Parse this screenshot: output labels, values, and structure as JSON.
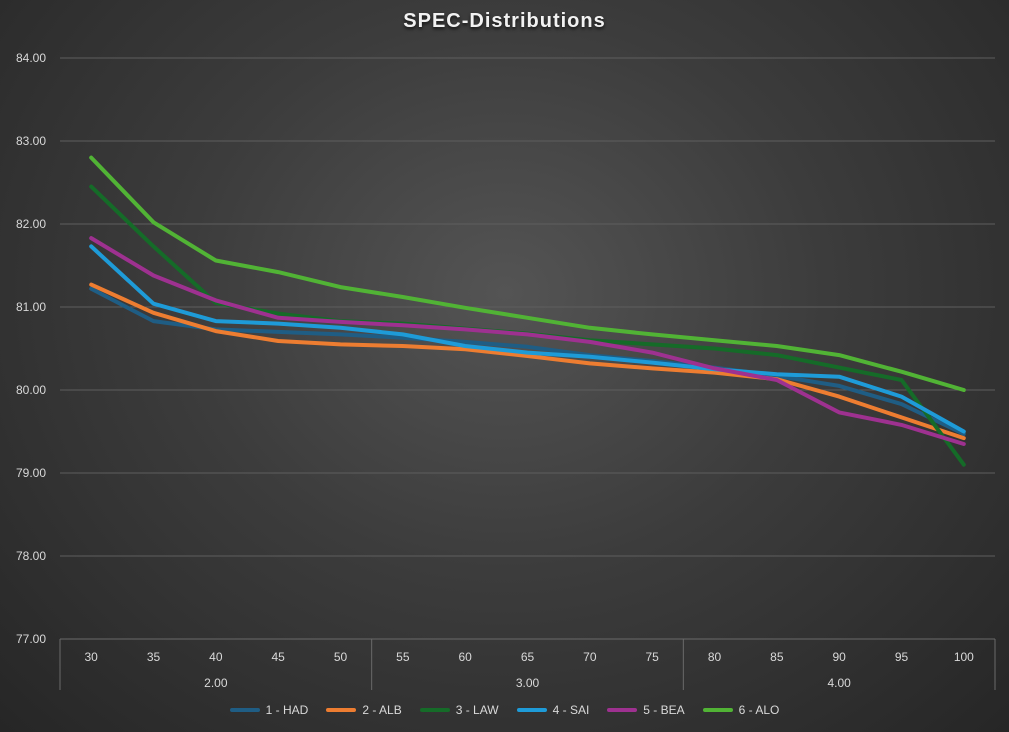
{
  "chart_data": {
    "type": "line",
    "title": "SPEC-Distributions",
    "xlabel": "",
    "ylabel": "",
    "ylim": [
      77,
      84
    ],
    "yticks": [
      77,
      78,
      79,
      80,
      81,
      82,
      83,
      84
    ],
    "y_tick_labels": [
      "77.00",
      "78.00",
      "79.00",
      "80.00",
      "81.00",
      "82.00",
      "83.00",
      "84.00"
    ],
    "categories": [
      "30",
      "35",
      "40",
      "45",
      "50",
      "55",
      "60",
      "65",
      "70",
      "75",
      "80",
      "85",
      "90",
      "95",
      "100"
    ],
    "groups": [
      {
        "label": "2.00",
        "count": 5
      },
      {
        "label": "3.00",
        "count": 5
      },
      {
        "label": "4.00",
        "count": 5
      }
    ],
    "grid": true,
    "legend_position": "bottom",
    "series": [
      {
        "name": "1 - HAD",
        "color": "#1f5d84",
        "values": [
          81.22,
          80.83,
          80.73,
          80.7,
          80.67,
          80.63,
          80.58,
          80.52,
          80.42,
          80.35,
          80.27,
          80.17,
          80.05,
          79.83,
          79.47
        ]
      },
      {
        "name": "2 - ALB",
        "color": "#ed7d31",
        "values": [
          81.27,
          80.93,
          80.71,
          80.59,
          80.55,
          80.53,
          80.49,
          80.41,
          80.32,
          80.26,
          80.21,
          80.13,
          79.92,
          79.67,
          79.42
        ]
      },
      {
        "name": "3 - LAW",
        "color": "#156b28",
        "values": [
          82.45,
          81.73,
          81.05,
          80.92,
          80.83,
          80.8,
          80.74,
          80.68,
          80.6,
          80.55,
          80.5,
          80.42,
          80.27,
          80.12,
          79.1
        ]
      },
      {
        "name": "4 - SAI",
        "color": "#1e9bd8",
        "values": [
          81.73,
          81.04,
          80.83,
          80.8,
          80.75,
          80.67,
          80.53,
          80.45,
          80.4,
          80.33,
          80.25,
          80.19,
          80.16,
          79.92,
          79.5
        ]
      },
      {
        "name": "5 - BEA",
        "color": "#9e3190",
        "values": [
          81.83,
          81.38,
          81.08,
          80.87,
          80.82,
          80.78,
          80.73,
          80.67,
          80.58,
          80.45,
          80.26,
          80.12,
          79.73,
          79.58,
          79.35
        ]
      },
      {
        "name": "6 - ALO",
        "color": "#51b335",
        "values": [
          82.8,
          82.02,
          81.56,
          81.42,
          81.24,
          81.12,
          80.99,
          80.87,
          80.75,
          80.67,
          80.6,
          80.53,
          80.42,
          80.22,
          80.0
        ]
      }
    ]
  }
}
